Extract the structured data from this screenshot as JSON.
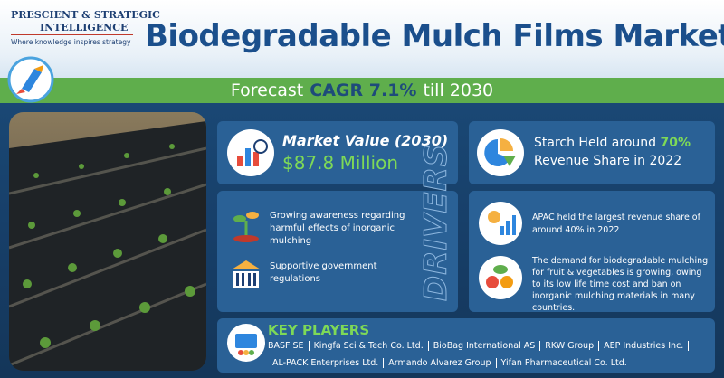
{
  "logo": {
    "line1": "PRESCIENT & STRATEGIC",
    "line2": "INTELLIGENCE",
    "tagline": "Where knowledge inspires strategy"
  },
  "title": "Biodegradable Mulch Films Market",
  "banner": {
    "before": "Forecast",
    "highlight": "CAGR 7.1%",
    "after": "till 2030"
  },
  "market_value": {
    "label": "Market Value (2030)",
    "value": "$87.8 Million"
  },
  "starch": {
    "before": "Starch Held around",
    "highlight": "70%",
    "after": "Revenue Share in 2022"
  },
  "drivers": {
    "label": "DRIVERS",
    "items": [
      "Growing awareness regarding harmful effects of inorganic mulching",
      "Supportive government regulations"
    ]
  },
  "insights": [
    "APAC held the largest revenue share of around 40% in 2022",
    "The demand for biodegradable mulching for fruit & vegetables is growing, owing to its low life time cost and ban on inorganic mulching materials in many countries."
  ],
  "key_players": {
    "title": "KEY PLAYERS",
    "items": [
      "BASF SE",
      "Kingfa Sci & Tech Co. Ltd.",
      "BioBag International AS",
      "RKW Group",
      "AEP Industries Inc.",
      "AL-PACK Enterprises Ltd.",
      "Armando Alvarez Group",
      "Yifan Pharmaceutical Co. Ltd."
    ]
  }
}
